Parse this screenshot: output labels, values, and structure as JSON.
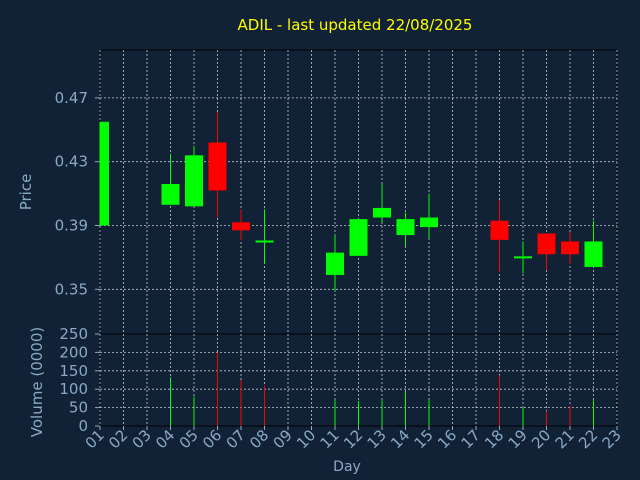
{
  "title": "ADIL - last updated 22/08/2025",
  "colors": {
    "background": "#112236",
    "title": "#ffff00",
    "axis_text": "#8aa9c7",
    "frame": "#000000",
    "grid": "#ffffff",
    "up": "#00ff00",
    "down": "#ff0000"
  },
  "chart_data": [
    {
      "type": "candlestick",
      "ylabel": "Price",
      "xlabel": "Day",
      "ylim": [
        0.322,
        0.5
      ],
      "yticks": [
        0.35,
        0.39,
        0.43,
        0.47
      ],
      "ytick_labels": [
        "0.35",
        "0.39",
        "0.43",
        "0.47"
      ],
      "grid": true,
      "candles": [
        {
          "day": "01",
          "open": 0.39,
          "high": 0.455,
          "low": 0.39,
          "close": 0.455
        },
        {
          "day": "04",
          "open": 0.403,
          "high": 0.435,
          "low": 0.403,
          "close": 0.416
        },
        {
          "day": "05",
          "open": 0.402,
          "high": 0.44,
          "low": 0.402,
          "close": 0.434
        },
        {
          "day": "06",
          "open": 0.442,
          "high": 0.461,
          "low": 0.395,
          "close": 0.412
        },
        {
          "day": "07",
          "open": 0.392,
          "high": 0.4,
          "low": 0.381,
          "close": 0.387
        },
        {
          "day": "08",
          "open": 0.38,
          "high": 0.4,
          "low": 0.366,
          "close": 0.38
        },
        {
          "day": "11",
          "open": 0.359,
          "high": 0.384,
          "low": 0.349,
          "close": 0.373
        },
        {
          "day": "12",
          "open": 0.371,
          "high": 0.394,
          "low": 0.371,
          "close": 0.394
        },
        {
          "day": "13",
          "open": 0.395,
          "high": 0.416,
          "low": 0.392,
          "close": 0.401
        },
        {
          "day": "14",
          "open": 0.384,
          "high": 0.398,
          "low": 0.377,
          "close": 0.394
        },
        {
          "day": "15",
          "open": 0.389,
          "high": 0.41,
          "low": 0.382,
          "close": 0.395
        },
        {
          "day": "18",
          "open": 0.393,
          "high": 0.406,
          "low": 0.361,
          "close": 0.381
        },
        {
          "day": "19",
          "open": 0.37,
          "high": 0.38,
          "low": 0.36,
          "close": 0.37
        },
        {
          "day": "20",
          "open": 0.385,
          "high": 0.385,
          "low": 0.362,
          "close": 0.372
        },
        {
          "day": "21",
          "open": 0.38,
          "high": 0.386,
          "low": 0.366,
          "close": 0.372
        },
        {
          "day": "22",
          "open": 0.364,
          "high": 0.393,
          "low": 0.364,
          "close": 0.38
        }
      ]
    },
    {
      "type": "bar",
      "ylabel": "Volume (0000)",
      "xlabel": "Day",
      "ylim": [
        0,
        250
      ],
      "yticks": [
        0,
        50,
        100,
        150,
        200,
        250
      ],
      "ytick_labels": [
        "0",
        "50",
        "100",
        "150",
        "200",
        "250"
      ],
      "grid": true,
      "categories": [
        "01",
        "02",
        "03",
        "04",
        "05",
        "06",
        "07",
        "08",
        "09",
        "10",
        "11",
        "12",
        "13",
        "14",
        "15",
        "16",
        "17",
        "18",
        "19",
        "20",
        "21",
        "22",
        "23"
      ],
      "volumes": [
        {
          "day": "04",
          "value": 132,
          "direction": "up"
        },
        {
          "day": "05",
          "value": 80,
          "direction": "up"
        },
        {
          "day": "06",
          "value": 200,
          "direction": "down"
        },
        {
          "day": "07",
          "value": 125,
          "direction": "down"
        },
        {
          "day": "08",
          "value": 110,
          "direction": "down"
        },
        {
          "day": "11",
          "value": 72,
          "direction": "up"
        },
        {
          "day": "12",
          "value": 68,
          "direction": "up"
        },
        {
          "day": "13",
          "value": 70,
          "direction": "up"
        },
        {
          "day": "14",
          "value": 92,
          "direction": "up"
        },
        {
          "day": "15",
          "value": 70,
          "direction": "up"
        },
        {
          "day": "18",
          "value": 138,
          "direction": "down"
        },
        {
          "day": "19",
          "value": 50,
          "direction": "up"
        },
        {
          "day": "20",
          "value": 40,
          "direction": "down"
        },
        {
          "day": "21",
          "value": 55,
          "direction": "down"
        },
        {
          "day": "22",
          "value": 70,
          "direction": "up"
        }
      ]
    }
  ]
}
